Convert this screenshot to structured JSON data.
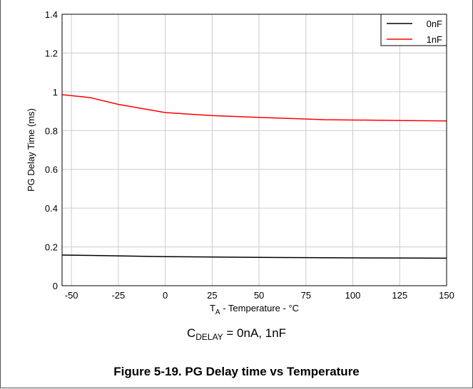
{
  "chart_data": {
    "type": "line",
    "title": "",
    "xlabel": {
      "main": "T",
      "sub": "A",
      "rest": " - Temperature - °C"
    },
    "ylabel": "PG Delay Time (ms)",
    "xlim": [
      -55,
      150
    ],
    "ylim": [
      0,
      1.4
    ],
    "xticks": [
      -50,
      -25,
      0,
      25,
      50,
      75,
      100,
      125,
      150
    ],
    "yticks": [
      0,
      0.2,
      0.4,
      0.6,
      0.8,
      1,
      1.2,
      1.4
    ],
    "grid": true,
    "legend_position": "top-right",
    "series": [
      {
        "name": "0nF",
        "color": "#000000",
        "x": [
          -55,
          -40,
          0,
          25,
          50,
          85,
          125,
          150
        ],
        "y": [
          0.158,
          0.156,
          0.15,
          0.148,
          0.146,
          0.144,
          0.143,
          0.142
        ]
      },
      {
        "name": "1nF",
        "color": "#ff0000",
        "x": [
          -55,
          -40,
          -25,
          0,
          25,
          50,
          85,
          125,
          150
        ],
        "y": [
          0.985,
          0.97,
          0.935,
          0.893,
          0.877,
          0.868,
          0.856,
          0.852,
          0.85
        ]
      }
    ]
  },
  "condition": {
    "main": "C",
    "sub": "DELAY",
    "rest": " = 0nA, 1nF"
  },
  "caption": "Figure 5-19. PG Delay time vs Temperature"
}
